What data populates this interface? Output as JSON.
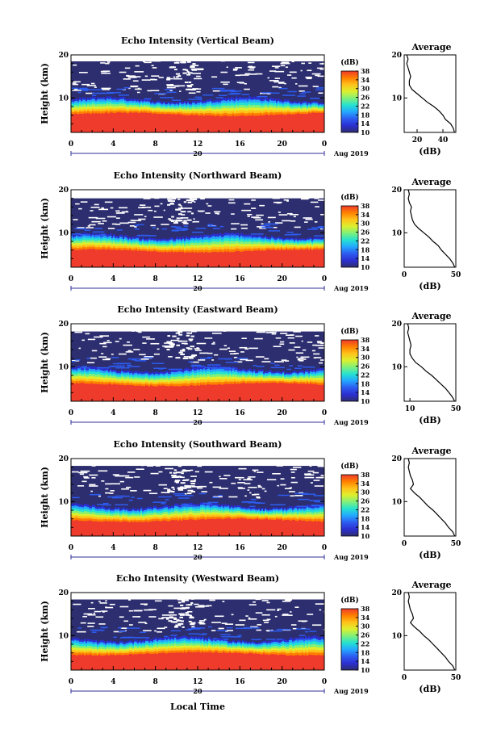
{
  "figure": {
    "xlabel": "Local Time",
    "date_label": "Aug 2019",
    "day_label": "20",
    "colorbar_unit": "(dB)",
    "average_title": "Average",
    "average_xlabel": "(dB)",
    "ylabel": "Height (km)"
  },
  "chart_data": [
    {
      "type": "heatmap",
      "title": "Echo Intensity (Vertical Beam)",
      "xlabel": "",
      "ylabel": "Height (km)",
      "xlim": [
        0,
        24
      ],
      "ylim": [
        2,
        20
      ],
      "xticks": [
        "0",
        "4",
        "8",
        "12",
        "16",
        "20",
        "0"
      ],
      "yticks": [
        "10",
        "20"
      ],
      "colorbar": {
        "label": "(dB)",
        "range": [
          10,
          38
        ],
        "ticks": [
          "10",
          "14",
          "18",
          "22",
          "26",
          "30",
          "34",
          "38"
        ]
      },
      "layers": {
        "red_top_km": 6.2,
        "transition_top_km": 9.6,
        "cloud_top_km": 18.5
      },
      "average": {
        "title": "Average",
        "xlabel": "(dB)",
        "xlim": [
          10,
          50
        ],
        "xticks": [
          "20",
          "40"
        ],
        "height_km": [
          2,
          3,
          4,
          5,
          6,
          7,
          8,
          9,
          10,
          11,
          12,
          13,
          14,
          15,
          16,
          17,
          18,
          19,
          20
        ],
        "value_db": [
          49,
          48,
          46,
          42,
          40,
          37,
          33,
          28,
          24,
          20,
          16,
          14,
          14,
          15,
          14,
          13,
          12,
          13,
          12
        ]
      }
    },
    {
      "type": "heatmap",
      "title": "Echo Intensity (Northward Beam)",
      "xlabel": "",
      "ylabel": "Height (km)",
      "xlim": [
        0,
        24
      ],
      "ylim": [
        2,
        20
      ],
      "xticks": [
        "0",
        "4",
        "8",
        "12",
        "16",
        "20",
        "0"
      ],
      "yticks": [
        "10",
        "20"
      ],
      "colorbar": {
        "label": "(dB)",
        "range": [
          10,
          38
        ],
        "ticks": [
          "10",
          "14",
          "18",
          "22",
          "26",
          "30",
          "34",
          "38"
        ]
      },
      "layers": {
        "red_top_km": 5.8,
        "transition_top_km": 9.2,
        "cloud_top_km": 18.0
      },
      "average": {
        "title": "Average",
        "xlabel": "(dB)",
        "xlim": [
          0,
          50
        ],
        "xticks": [
          "0",
          "50"
        ],
        "height_km": [
          2,
          3,
          4,
          5,
          6,
          7,
          8,
          9,
          10,
          11,
          12,
          13,
          14,
          15,
          16,
          17,
          18,
          19,
          20
        ],
        "value_db": [
          49,
          47,
          44,
          40,
          36,
          33,
          28,
          24,
          19,
          14,
          10,
          8,
          7,
          6,
          7,
          5,
          4,
          5,
          4
        ]
      }
    },
    {
      "type": "heatmap",
      "title": "Echo Intensity (Eastward Beam)",
      "xlabel": "",
      "ylabel": "Height (km)",
      "xlim": [
        0,
        24
      ],
      "ylim": [
        2,
        20
      ],
      "xticks": [
        "0",
        "4",
        "8",
        "12",
        "16",
        "20",
        "0"
      ],
      "yticks": [
        "10",
        "20"
      ],
      "colorbar": {
        "label": "(dB)",
        "range": [
          10,
          38
        ],
        "ticks": [
          "10",
          "14",
          "18",
          "22",
          "26",
          "30",
          "34",
          "38"
        ]
      },
      "layers": {
        "red_top_km": 5.9,
        "transition_top_km": 9.4,
        "cloud_top_km": 18.2
      },
      "average": {
        "title": "Average",
        "xlabel": "(dB)",
        "xlim": [
          5,
          50
        ],
        "xticks": [
          "10",
          "50"
        ],
        "height_km": [
          2,
          3,
          4,
          5,
          6,
          7,
          8,
          9,
          10,
          11,
          12,
          13,
          14,
          15,
          16,
          17,
          18,
          19,
          20
        ],
        "value_db": [
          49,
          47,
          44,
          41,
          37,
          33,
          29,
          24,
          20,
          15,
          12,
          10,
          10,
          11,
          10,
          9,
          8,
          9,
          8
        ]
      }
    },
    {
      "type": "heatmap",
      "title": "Echo Intensity (Southward Beam)",
      "xlabel": "",
      "ylabel": "Height (km)",
      "xlim": [
        0,
        24
      ],
      "ylim": [
        2,
        20
      ],
      "xticks": [
        "0",
        "4",
        "8",
        "12",
        "16",
        "20",
        "0"
      ],
      "yticks": [
        "10",
        "20"
      ],
      "colorbar": {
        "label": "(dB)",
        "range": [
          10,
          38
        ],
        "ticks": [
          "10",
          "14",
          "18",
          "22",
          "26",
          "30",
          "34",
          "38"
        ]
      },
      "layers": {
        "red_top_km": 5.7,
        "transition_top_km": 9.0,
        "cloud_top_km": 18.3
      },
      "average": {
        "title": "Average",
        "xlabel": "(dB)",
        "xlim": [
          0,
          50
        ],
        "xticks": [
          "0",
          "50"
        ],
        "height_km": [
          2,
          3,
          4,
          5,
          6,
          7,
          8,
          9,
          10,
          11,
          12,
          13,
          14,
          15,
          16,
          17,
          18,
          19,
          20
        ],
        "value_db": [
          49,
          47,
          43,
          40,
          36,
          32,
          28,
          23,
          19,
          15,
          10,
          6,
          9,
          8,
          6,
          5,
          4,
          5,
          4
        ]
      }
    },
    {
      "type": "heatmap",
      "title": "Echo Intensity (Westward Beam)",
      "xlabel": "Local Time",
      "ylabel": "Height (km)",
      "xlim": [
        0,
        24
      ],
      "ylim": [
        2,
        20
      ],
      "xticks": [
        "0",
        "4",
        "8",
        "12",
        "16",
        "20",
        "0"
      ],
      "yticks": [
        "10",
        "20"
      ],
      "colorbar": {
        "label": "(dB)",
        "range": [
          10,
          38
        ],
        "ticks": [
          "10",
          "14",
          "18",
          "22",
          "26",
          "30",
          "34",
          "38"
        ]
      },
      "layers": {
        "red_top_km": 5.8,
        "transition_top_km": 9.2,
        "cloud_top_km": 18.4
      },
      "average": {
        "title": "Average",
        "xlabel": "(dB)",
        "xlim": [
          0,
          50
        ],
        "xticks": [
          "0",
          "50"
        ],
        "height_km": [
          2,
          3,
          4,
          5,
          6,
          7,
          8,
          9,
          10,
          11,
          12,
          13,
          14,
          15,
          16,
          17,
          18,
          19,
          20
        ],
        "value_db": [
          49,
          47,
          43,
          40,
          36,
          32,
          28,
          24,
          19,
          15,
          10,
          6,
          9,
          8,
          6,
          5,
          4,
          5,
          4
        ]
      }
    }
  ],
  "colors": {
    "colorbar_stops": [
      "#ef3b2c",
      "#ff7f00",
      "#ffc21a",
      "#dcef2e",
      "#7ff07a",
      "#25e2d0",
      "#24a6ff",
      "#2d5cf0",
      "#2b2fd1",
      "#2d2e6f"
    ],
    "background_dark": "#2d2e6f",
    "surface_red": "#ef3b2c",
    "axis": "#000000",
    "date_marker": "#2f2f9a"
  }
}
